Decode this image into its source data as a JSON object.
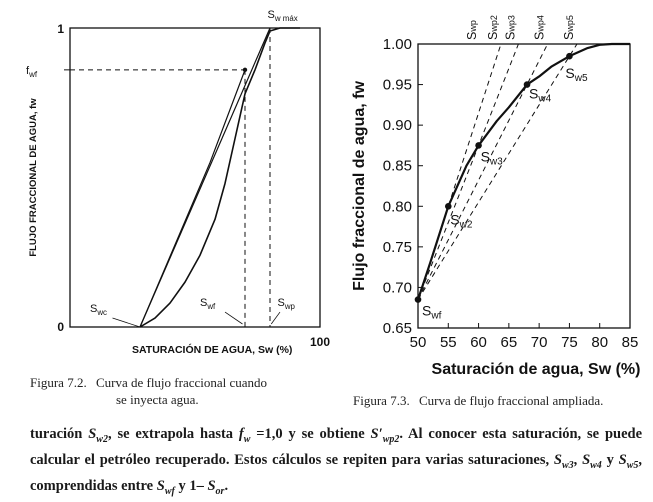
{
  "figures": {
    "left": {
      "caption": {
        "label": "Figura 7.2.",
        "lines": [
          "Curva de flujo fraccional cuando",
          "se inyecta agua."
        ]
      },
      "chart_data": {
        "type": "line",
        "title": "",
        "xlabel": "SATURACIÓN DE AGUA, Sw (%)",
        "ylabel": "FLUJO FRACCIONAL DE AGUA, fw",
        "x_ticks": [
          "0",
          "100"
        ],
        "y_ticks": [
          "0",
          "1"
        ],
        "y_marks": [
          "fwf"
        ],
        "xlim": [
          0,
          100
        ],
        "ylim": [
          0,
          1
        ],
        "annotations": [
          "Swc",
          "Swf",
          "Swp",
          "Sw máx"
        ],
        "series": [
          {
            "x": [
              28,
              34,
              40,
              46,
              52,
              58,
              62,
              66,
              70,
              74
            ],
            "y": [
              0,
              0.03,
              0.08,
              0.15,
              0.24,
              0.36,
              0.48,
              0.63,
              0.78,
              0.86
            ]
          },
          {
            "x": [
              74,
              78,
              80,
              84,
              88,
              92
            ],
            "y": [
              0.86,
              0.95,
              0.99,
              1.0,
              1.0,
              1.0
            ]
          },
          {
            "x": [
              28,
              80
            ],
            "y": [
              0,
              1.0
            ]
          },
          {
            "x": [
              28,
              56,
              70
            ],
            "y": [
              0,
              0.55,
              0.86
            ]
          }
        ]
      }
    },
    "right": {
      "caption": {
        "label": "Figura 7.3.",
        "lines": [
          "Curva de flujo fraccional ampliada."
        ]
      },
      "chart_data": {
        "type": "line",
        "title": "",
        "xlabel": "Saturación de agua, Sw (%)",
        "ylabel": "Flujo fraccional de agua, fw",
        "xlim": [
          50,
          85
        ],
        "ylim": [
          0.65,
          1.0
        ],
        "x_ticks": [
          "50",
          "55",
          "60",
          "65",
          "70",
          "75",
          "80",
          "85"
        ],
        "y_ticks": [
          "0.65",
          "0.70",
          "0.75",
          "0.80",
          "0.85",
          "0.90",
          "0.95",
          "1.00"
        ],
        "series": [
          {
            "x": [
              50,
              52,
              55,
              58,
              60,
              63,
              65,
              68,
              70,
              72,
              75,
              78,
              80,
              82,
              85
            ],
            "y": [
              0.685,
              0.73,
              0.8,
              0.85,
              0.875,
              0.905,
              0.922,
              0.95,
              0.96,
              0.972,
              0.985,
              0.995,
              0.999,
              1.0,
              1.0
            ]
          }
        ],
        "points": [
          {
            "label": "Swf",
            "x": 50,
            "y": 0.685
          },
          {
            "label": "Sw2",
            "x": 55,
            "y": 0.8
          },
          {
            "label": "Sw3",
            "x": 60,
            "y": 0.875
          },
          {
            "label": "Sw4",
            "x": 68,
            "y": 0.95
          },
          {
            "label": "Sw5",
            "x": 75,
            "y": 0.985
          }
        ],
        "tangent_labels": [
          "Swp",
          "Swp2",
          "Swp3",
          "Swp4",
          "Swp5"
        ]
      }
    }
  },
  "paragraph": {
    "text_1": "turación ",
    "sym_1": "S",
    "sub_1": "w2",
    "text_2": ", se extrapola hasta ",
    "sym_2": "f",
    "sub_2": "w",
    "text_3": " =1,0 y se obtiene ",
    "sym_3": "S′",
    "sub_3": "wp2",
    "text_4": ". Al conocer esta saturación, se puede calcular el petróleo recuperado. Estos cálculos se repiten para varias saturaciones, ",
    "sym_4": "S",
    "sub_4": "w3",
    "text_5": ", ",
    "sym_5": "S",
    "sub_5": "w4",
    "text_6": " y ",
    "sym_6": "S",
    "sub_6": "w5",
    "text_7": ", comprendidas entre ",
    "sym_7": "S",
    "sub_7": "wf",
    "text_8": " y 1– ",
    "sym_8": "S",
    "sub_8": "or",
    "text_9": "."
  }
}
